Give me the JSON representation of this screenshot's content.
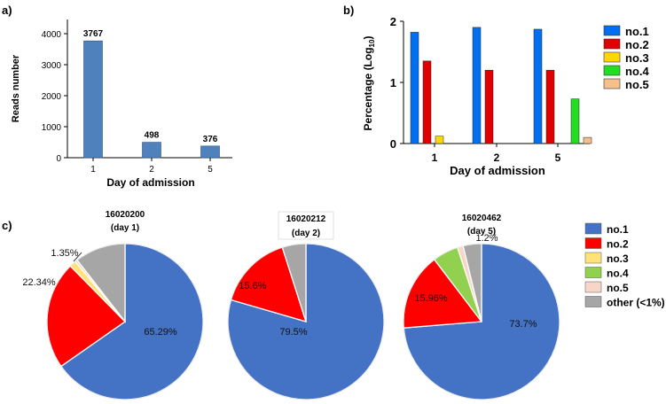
{
  "colors": {
    "axis": "#000000",
    "bar_a": "#4f81bd",
    "no1_bar": "#0070f0",
    "no2_bar": "#e00000",
    "no3_bar": "#ffd700",
    "no4_bar": "#22dd22",
    "no5_bar": "#f5c08a",
    "no1_pie": "#4472c4",
    "no2_pie": "#ff0000",
    "no3_pie": "#ffe27a",
    "no4_pie": "#92d050",
    "no5_pie": "#f8d6c7",
    "other_pie": "#a6a6a6"
  },
  "panel_labels": {
    "a": "a)",
    "b": "b)",
    "c": "c)"
  },
  "chart_data": [
    {
      "panel": "a",
      "type": "bar",
      "categories": [
        "1",
        "2",
        "5"
      ],
      "values": [
        3767,
        498,
        376
      ],
      "data_labels": [
        "3767",
        "498",
        "376"
      ],
      "xlabel": "Day of admission",
      "ylabel": "Reads number",
      "ylim": [
        0,
        4000
      ],
      "yticks": [
        "0",
        "1000",
        "2000",
        "3000",
        "4000"
      ],
      "yticks_values": [
        0,
        1000,
        2000,
        3000,
        4000
      ]
    },
    {
      "panel": "b",
      "type": "bar",
      "categories": [
        "1",
        "2",
        "5"
      ],
      "xlabel": "Day of admission",
      "ylabel": "Percentage (Log10)",
      "ylabel_main": "Percentage (Log",
      "ylabel_sub": "10",
      "ylabel_close": ")",
      "ylim": [
        0,
        2
      ],
      "yticks": [
        "0",
        "1",
        "2"
      ],
      "yticks_values": [
        0,
        1,
        2
      ],
      "legend_position": "right",
      "series": [
        {
          "name": "no.1",
          "values": [
            1.82,
            1.9,
            1.87
          ]
        },
        {
          "name": "no.2",
          "values": [
            1.35,
            1.2,
            1.2
          ]
        },
        {
          "name": "no.3",
          "values": [
            0.12,
            0,
            0
          ]
        },
        {
          "name": "no.4",
          "values": [
            0,
            0,
            0.73
          ]
        },
        {
          "name": "no.5",
          "values": [
            0,
            0,
            0.1
          ]
        }
      ]
    },
    {
      "panel": "c",
      "type": "pie",
      "legend_position": "right",
      "legend": [
        "no.1",
        "no.2",
        "no.3",
        "no.4",
        "no.5",
        "other (<1%)"
      ],
      "pies": [
        {
          "title_line1": "16020200",
          "title_line2": "(day 1)",
          "slices": [
            {
              "name": "no.1",
              "value": 65.29,
              "label": "65.29%"
            },
            {
              "name": "no.2",
              "value": 22.34,
              "label": "22.34%"
            },
            {
              "name": "no.3",
              "value": 1.35,
              "label": "1.35%"
            },
            {
              "name": "no.4",
              "value": 0,
              "label": ""
            },
            {
              "name": "no.5",
              "value": 0.5,
              "label": ""
            },
            {
              "name": "other (<1%)",
              "value": 10.52,
              "label": ""
            }
          ]
        },
        {
          "title_line1": "16020212",
          "title_line2": "(day 2)",
          "slices": [
            {
              "name": "no.1",
              "value": 79.5,
              "label": "79.5%"
            },
            {
              "name": "no.2",
              "value": 15.6,
              "label": "15.6%"
            },
            {
              "name": "no.3",
              "value": 0,
              "label": ""
            },
            {
              "name": "no.4",
              "value": 0,
              "label": ""
            },
            {
              "name": "no.5",
              "value": 0,
              "label": ""
            },
            {
              "name": "other (<1%)",
              "value": 4.9,
              "label": ""
            }
          ]
        },
        {
          "title_line1": "16020462",
          "title_line2": "(day 5)",
          "slices": [
            {
              "name": "no.1",
              "value": 73.7,
              "label": "73.7%"
            },
            {
              "name": "no.2",
              "value": 15.96,
              "label": "15.96%"
            },
            {
              "name": "no.3",
              "value": 0,
              "label": ""
            },
            {
              "name": "no.4",
              "value": 5.35,
              "label": "5.35%"
            },
            {
              "name": "no.5",
              "value": 1.2,
              "label": "1.2%"
            },
            {
              "name": "other (<1%)",
              "value": 3.79,
              "label": ""
            }
          ]
        }
      ]
    }
  ]
}
